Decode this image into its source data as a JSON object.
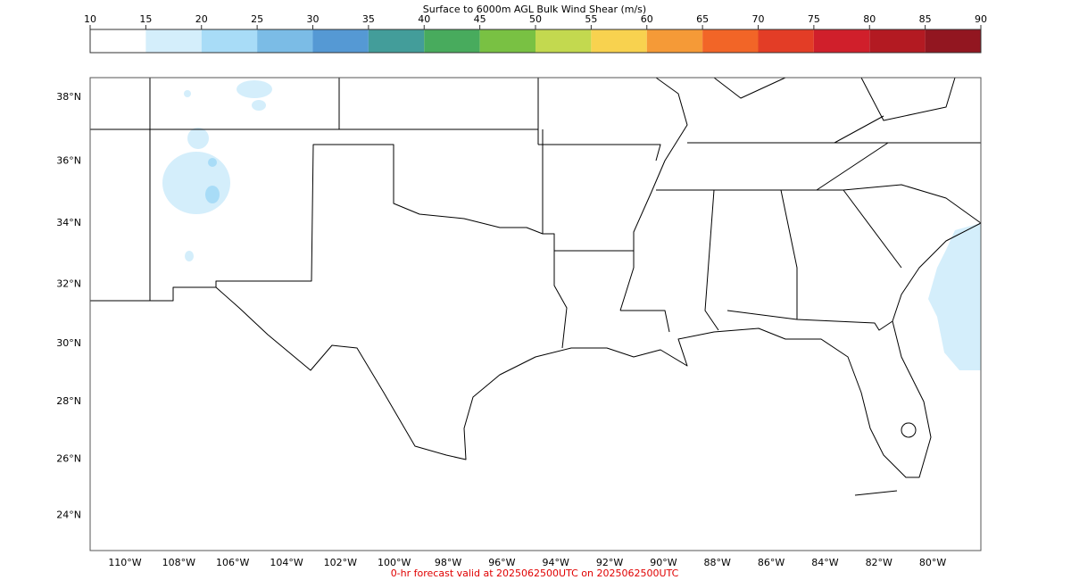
{
  "colorbar": {
    "title": "Surface to 6000m AGL Bulk Wind Shear (m/s)",
    "ticks": [
      10,
      15,
      20,
      25,
      30,
      35,
      40,
      45,
      50,
      55,
      60,
      65,
      70,
      75,
      80,
      85,
      90
    ],
    "colors": [
      "#ffffff",
      "#d4eefb",
      "#a8dcf7",
      "#7bbce6",
      "#5599d4",
      "#439d9a",
      "#48ab5d",
      "#79c143",
      "#c3d94f",
      "#f8d24f",
      "#f59a37",
      "#f26527",
      "#e33d26",
      "#d01f2b",
      "#b31a22",
      "#921620"
    ]
  },
  "map": {
    "lat_labels": [
      {
        "value": 38,
        "label": "38°N"
      },
      {
        "value": 36,
        "label": "36°N"
      },
      {
        "value": 34,
        "label": "34°N"
      },
      {
        "value": 32,
        "label": "32°N"
      },
      {
        "value": 30,
        "label": "30°N"
      },
      {
        "value": 28,
        "label": "28°N"
      },
      {
        "value": 26,
        "label": "26°N"
      },
      {
        "value": 24,
        "label": "24°N"
      }
    ],
    "lon_labels": [
      {
        "value": -110,
        "label": "110°W"
      },
      {
        "value": -108,
        "label": "108°W"
      },
      {
        "value": -106,
        "label": "106°W"
      },
      {
        "value": -104,
        "label": "104°W"
      },
      {
        "value": -102,
        "label": "102°W"
      },
      {
        "value": -100,
        "label": "100°W"
      },
      {
        "value": -98,
        "label": "98°W"
      },
      {
        "value": -96,
        "label": "96°W"
      },
      {
        "value": -94,
        "label": "94°W"
      },
      {
        "value": -92,
        "label": "92°W"
      },
      {
        "value": -90,
        "label": "90°W"
      },
      {
        "value": -88,
        "label": "88°W"
      },
      {
        "value": -86,
        "label": "86°W"
      },
      {
        "value": -84,
        "label": "84°W"
      },
      {
        "value": -82,
        "label": "82°W"
      },
      {
        "value": -80,
        "label": "80°W"
      }
    ]
  },
  "footer": "0-hr forecast valid at 2025062500UTC on 2025062500UTC"
}
